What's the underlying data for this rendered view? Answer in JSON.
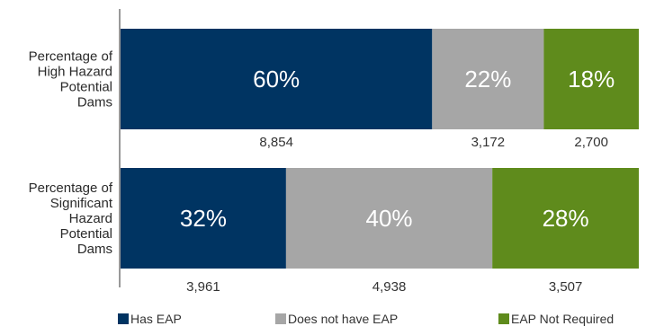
{
  "chart_data": {
    "type": "bar",
    "orientation": "horizontal",
    "stacked": true,
    "percent_stacked": true,
    "categories": [
      [
        "Percentage of",
        "High Hazard",
        "Potential",
        "Dams"
      ],
      [
        "Percentage of",
        "Significant",
        "Hazard",
        "Potential",
        "Dams"
      ]
    ],
    "series": [
      {
        "name": "Has EAP",
        "color": "#003462",
        "percent_labels": [
          "60%",
          "32%"
        ],
        "counts": [
          "8,854",
          "3,961"
        ],
        "values": [
          8854,
          3961
        ]
      },
      {
        "name": "Does not have EAP",
        "color": "#a6a6a6",
        "percent_labels": [
          "22%",
          "40%"
        ],
        "counts": [
          "3,172",
          "4,938"
        ],
        "values": [
          3172,
          4938
        ]
      },
      {
        "name": "EAP Not Required",
        "color": "#5f8b1c",
        "percent_labels": [
          "18%",
          "28%"
        ],
        "counts": [
          "2,700",
          "3,507"
        ],
        "values": [
          2700,
          3507
        ]
      }
    ],
    "grid": false,
    "legend": "bottom"
  }
}
